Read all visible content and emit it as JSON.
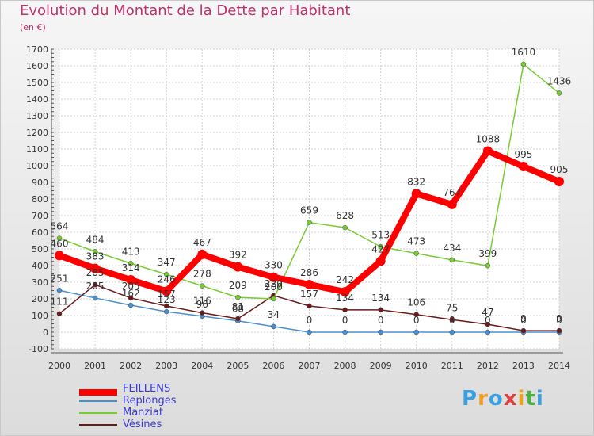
{
  "chart_data": {
    "type": "line",
    "title": "Evolution du Montant de la Dette par Habitant",
    "subtitle": "(en €)",
    "x": [
      "2000",
      "2001",
      "2002",
      "2003",
      "2004",
      "2005",
      "2006",
      "2007",
      "2008",
      "2009",
      "2010",
      "2011",
      "2012",
      "2013",
      "2014"
    ],
    "ylim": [
      -100,
      1700
    ],
    "yticks": [
      -100,
      0,
      100,
      200,
      300,
      400,
      500,
      600,
      700,
      800,
      900,
      1000,
      1100,
      1200,
      1300,
      1400,
      1500,
      1600,
      1700
    ],
    "grid": true,
    "legend_position": "bottom-left",
    "series": [
      {
        "name": "FEILLENS",
        "color": "#ff0000",
        "values": [
          460,
          383,
          314,
          246,
          467,
          392,
          330,
          286,
          242,
          427,
          832,
          767,
          1088,
          995,
          905
        ]
      },
      {
        "name": "Replonges",
        "color": "#4a90d0",
        "values": [
          251,
          205,
          162,
          123,
          96,
          68,
          34,
          0,
          0,
          0,
          0,
          0,
          0,
          0,
          0
        ]
      },
      {
        "name": "Manziat",
        "color": "#77cc33",
        "values": [
          564,
          484,
          413,
          347,
          278,
          209,
          200,
          659,
          628,
          513,
          473,
          434,
          399,
          1610,
          1436
        ]
      },
      {
        "name": "Vésines",
        "color": "#6b1a1a",
        "values": [
          111,
          285,
          205,
          157,
          116,
          81,
          220,
          157,
          134,
          134,
          106,
          75,
          47,
          9,
          9
        ]
      }
    ]
  },
  "logo": {
    "letters": [
      "P",
      "r",
      "o",
      "x",
      "i",
      "t",
      "i"
    ],
    "colors": [
      "#3aa0e0",
      "#f0a020",
      "#3aa0e0",
      "#e04040",
      "#f0a020",
      "#4ab040",
      "#3aa0e0"
    ]
  }
}
